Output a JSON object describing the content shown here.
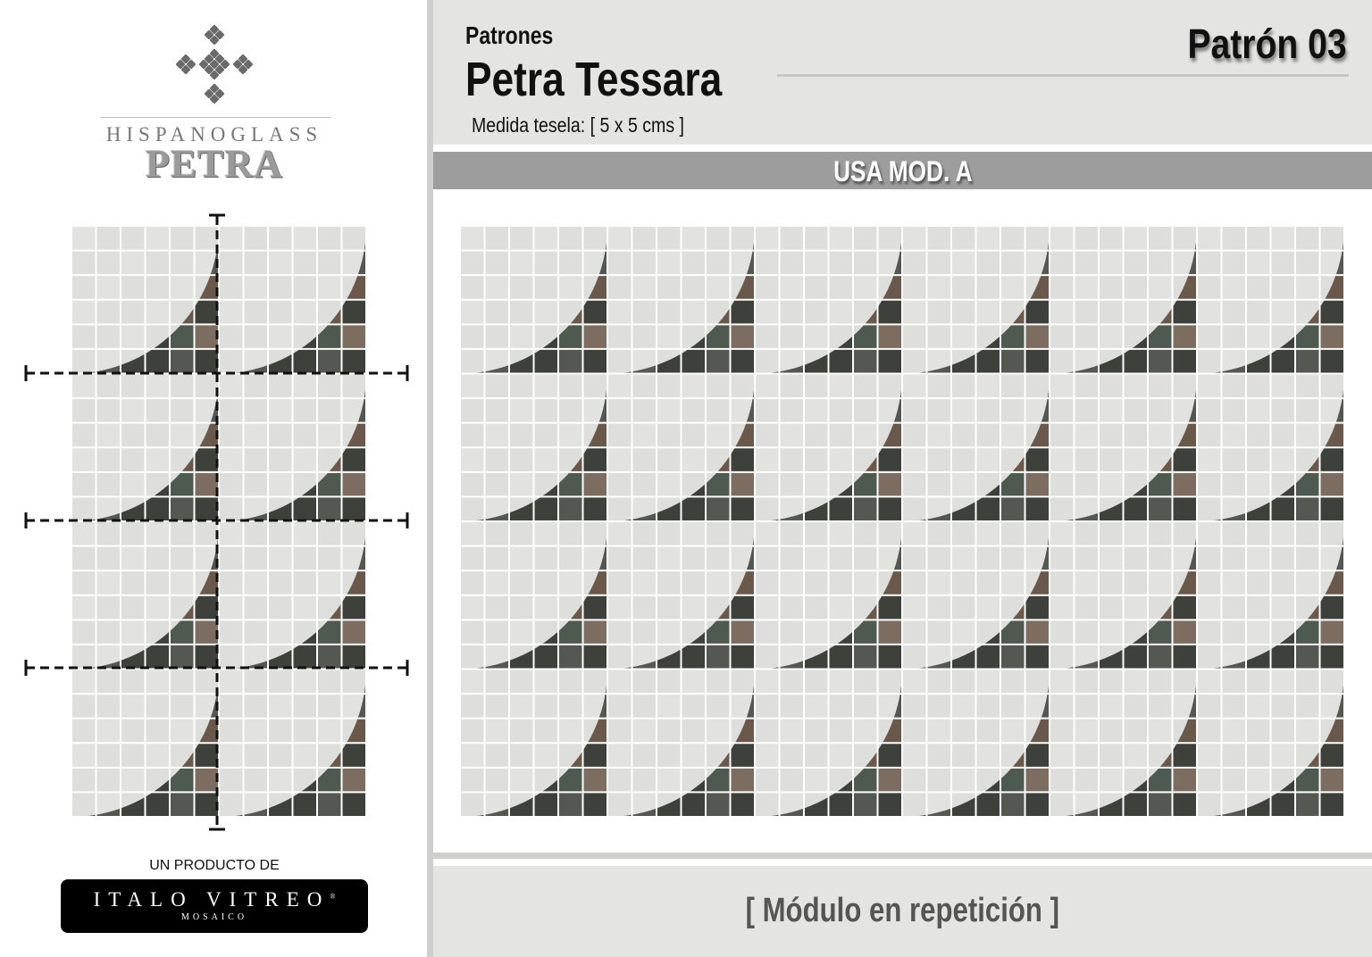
{
  "brand": {
    "logo_icon": "diamond-cluster-icon",
    "hispanoglass": "HISPANOGLASS",
    "petra": "PETRA",
    "producto_label": "UN PRODUCTO DE",
    "italo_vitreo": "ITALO VITREO",
    "registered": "®",
    "mosaico": "MOSAICO"
  },
  "header": {
    "category": "Patrones",
    "title": "Petra Tessara",
    "tile_size": "Medida tesela: [ 5 x 5 cms ]",
    "pattern": "Patrón 03"
  },
  "module_bar": {
    "label": "USA MOD. A"
  },
  "footer": {
    "caption": "[ Módulo en repetición ]"
  },
  "module": {
    "tiles_per_side": 6,
    "light_color": "#dededd",
    "dark_colors": [
      "#4e5a4f",
      "#3d403a",
      "#5d6a5c",
      "#6b5a4a"
    ],
    "grout_color": "#ffffff"
  },
  "left_preview": {
    "columns": 2,
    "rows": 4
  },
  "repetition": {
    "columns": 6,
    "rows": 4
  }
}
